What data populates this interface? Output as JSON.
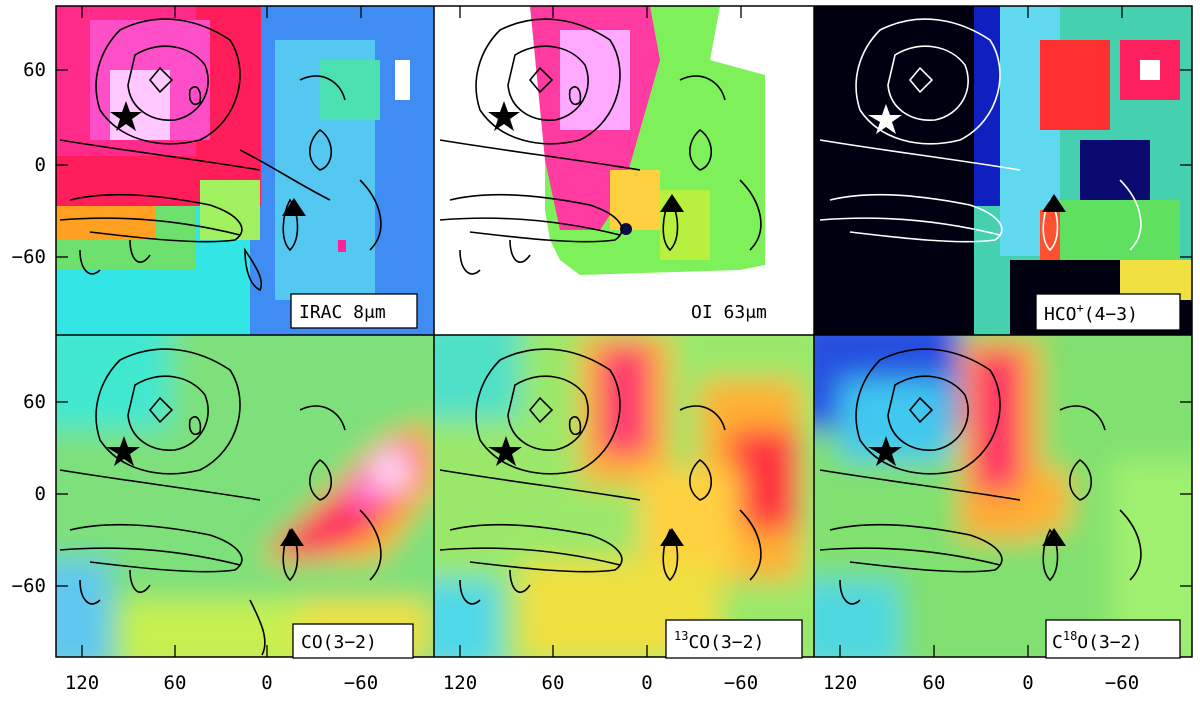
{
  "figure": {
    "y_tick_labels": [
      "60",
      "0",
      "−60"
    ],
    "x_tick_labels": [
      "120",
      "60",
      "0",
      "−60"
    ],
    "panels": [
      {
        "id": "irac",
        "label": "IRAC 8",
        "label_suffix": "μm",
        "colormap": "rainbow-map",
        "star_marker": "black star-icon",
        "triangle_marker": "black triangle-icon",
        "contour_color": "#000000"
      },
      {
        "id": "oi",
        "label": "OI 63",
        "label_suffix": "μm",
        "colormap": "rainbow-map (partial coverage, white outside)",
        "star_marker": "black star-icon",
        "triangle_marker": "black triangle-icon",
        "contour_color": "#000000"
      },
      {
        "id": "hco",
        "label_main": "HCO",
        "label_sup": "+",
        "label_tail": "(4−3)",
        "colormap": "rainbow-map (dark lower end)",
        "star_marker": "white star-icon",
        "triangle_marker": "black triangle-icon",
        "contour_color": "#ffffff"
      },
      {
        "id": "co",
        "label": "CO(3−2)",
        "colormap": "rainbow-map",
        "star_marker": "black star-icon",
        "triangle_marker": "black triangle-icon",
        "contour_color": "#000000"
      },
      {
        "id": "13co",
        "label_sup": "13",
        "label_tail": "CO(3−2)",
        "colormap": "rainbow-map",
        "star_marker": "black star-icon",
        "triangle_marker": "black triangle-icon",
        "contour_color": "#000000"
      },
      {
        "id": "c18o",
        "label_main": "C",
        "label_sup": "18",
        "label_tail": "O(3−2)",
        "colormap": "rainbow-map",
        "star_marker": "black star-icon",
        "triangle_marker": "black triangle-icon",
        "contour_color": "#000000"
      }
    ]
  }
}
